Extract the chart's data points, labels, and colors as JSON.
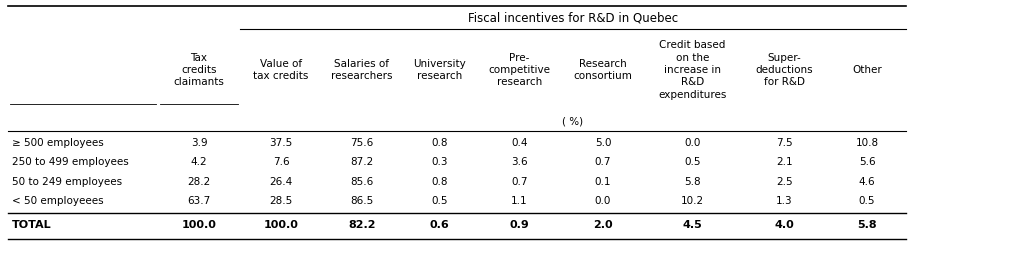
{
  "title_group": "Fiscal incentives for R&D in Quebec",
  "col_headers": [
    "Tax\ncredits\nclaimants",
    "Value of\ntax credits",
    "Salaries of\nresearchers",
    "University\nresearch",
    "Pre-\ncompetitive\nresearch",
    "Research\nconsortium",
    "Credit based\non the\nincrease in\nR&D\nexpenditures",
    "Super-\ndeductions\nfor R&D",
    "Other"
  ],
  "unit_row": "( %)",
  "row_labels": [
    "≥ 500 employees",
    "250 to 499 employees",
    "50 to 249 employees",
    "< 50 employeees"
  ],
  "total_label": "TOTAL",
  "data": [
    [
      3.9,
      37.5,
      75.6,
      0.8,
      0.4,
      5.0,
      0.0,
      7.5,
      10.8
    ],
    [
      4.2,
      7.6,
      87.2,
      0.3,
      3.6,
      0.7,
      0.5,
      2.1,
      5.6
    ],
    [
      28.2,
      26.4,
      85.6,
      0.8,
      0.7,
      0.1,
      5.8,
      2.5,
      4.6
    ],
    [
      63.7,
      28.5,
      86.5,
      0.5,
      1.1,
      0.0,
      10.2,
      1.3,
      0.5
    ]
  ],
  "total_row": [
    100.0,
    100.0,
    82.2,
    0.6,
    0.9,
    2.0,
    4.5,
    4.0,
    5.8
  ],
  "background_color": "#ffffff",
  "text_color": "#000000",
  "font_size": 7.5,
  "header_font_size": 7.5,
  "title_font_size": 8.5
}
